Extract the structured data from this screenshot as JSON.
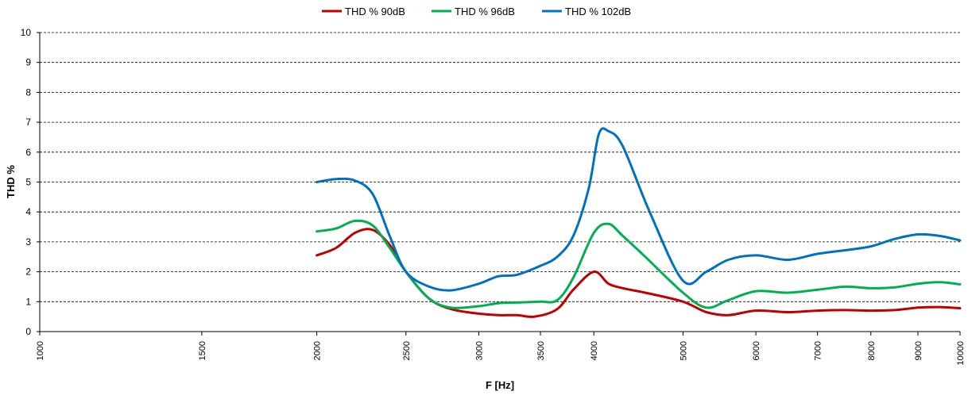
{
  "chart_data": {
    "type": "line",
    "xscale": "log",
    "xlabel": "F [Hz]",
    "ylabel": "THD %",
    "xlim": [
      1000,
      10000
    ],
    "ylim": [
      0,
      10
    ],
    "xticks": [
      1000,
      1500,
      2000,
      2500,
      3000,
      3500,
      4000,
      5000,
      6000,
      7000,
      8000,
      9000,
      10000
    ],
    "xtick_labels": [
      "1000",
      "1500",
      "2000",
      "2500",
      "3000",
      "3500",
      "4000",
      "5000",
      "6000",
      "7000",
      "8000",
      "9000",
      "10000"
    ],
    "yticks": [
      0,
      1,
      2,
      3,
      4,
      5,
      6,
      7,
      8,
      9,
      10
    ],
    "ytick_labels": [
      "0",
      "1",
      "2",
      "3",
      "4",
      "5",
      "6",
      "7",
      "8",
      "9",
      "10"
    ],
    "grid": "horizontal dashed",
    "legend_position": "top",
    "series": [
      {
        "name": "THD % 90dB",
        "color": "#C00000",
        "x": [
          2000,
          2100,
          2200,
          2300,
          2400,
          2500,
          2650,
          2800,
          3000,
          3150,
          3300,
          3450,
          3650,
          3800,
          4000,
          4150,
          4300,
          4550,
          5000,
          5300,
          5600,
          6000,
          6500,
          7000,
          7500,
          8000,
          8500,
          9000,
          9500,
          10000
        ],
        "y": [
          2.55,
          2.8,
          3.3,
          3.4,
          2.9,
          2.0,
          1.1,
          0.75,
          0.6,
          0.55,
          0.55,
          0.5,
          0.75,
          1.4,
          2.0,
          1.6,
          1.45,
          1.3,
          1.0,
          0.65,
          0.55,
          0.7,
          0.65,
          0.7,
          0.72,
          0.7,
          0.72,
          0.8,
          0.82,
          0.78
        ]
      },
      {
        "name": "THD % 96dB",
        "color": "#00B050",
        "x": [
          2000,
          2100,
          2200,
          2300,
          2400,
          2500,
          2650,
          2800,
          3000,
          3150,
          3300,
          3500,
          3650,
          3800,
          4000,
          4150,
          4300,
          4550,
          5000,
          5300,
          5600,
          6000,
          6500,
          7000,
          7500,
          8000,
          8500,
          9000,
          9500,
          10000
        ],
        "y": [
          3.35,
          3.45,
          3.7,
          3.55,
          2.8,
          2.0,
          1.1,
          0.8,
          0.85,
          0.95,
          0.97,
          1.0,
          1.05,
          1.8,
          3.3,
          3.6,
          3.2,
          2.5,
          1.3,
          0.8,
          1.05,
          1.35,
          1.3,
          1.4,
          1.5,
          1.45,
          1.48,
          1.6,
          1.65,
          1.58
        ]
      },
      {
        "name": "THD % 102dB",
        "color": "#0070C0",
        "x": [
          2000,
          2100,
          2200,
          2300,
          2400,
          2500,
          2650,
          2800,
          3000,
          3150,
          3300,
          3500,
          3650,
          3800,
          3950,
          4050,
          4150,
          4300,
          4600,
          5000,
          5300,
          5600,
          6000,
          6500,
          7000,
          7500,
          8000,
          8500,
          9000,
          9500,
          10000
        ],
        "y": [
          5.0,
          5.1,
          5.05,
          4.6,
          3.2,
          2.0,
          1.5,
          1.38,
          1.6,
          1.85,
          1.9,
          2.2,
          2.5,
          3.2,
          4.8,
          6.6,
          6.7,
          6.2,
          4.0,
          1.7,
          2.0,
          2.4,
          2.55,
          2.4,
          2.6,
          2.72,
          2.85,
          3.1,
          3.25,
          3.2,
          3.05
        ]
      }
    ]
  }
}
